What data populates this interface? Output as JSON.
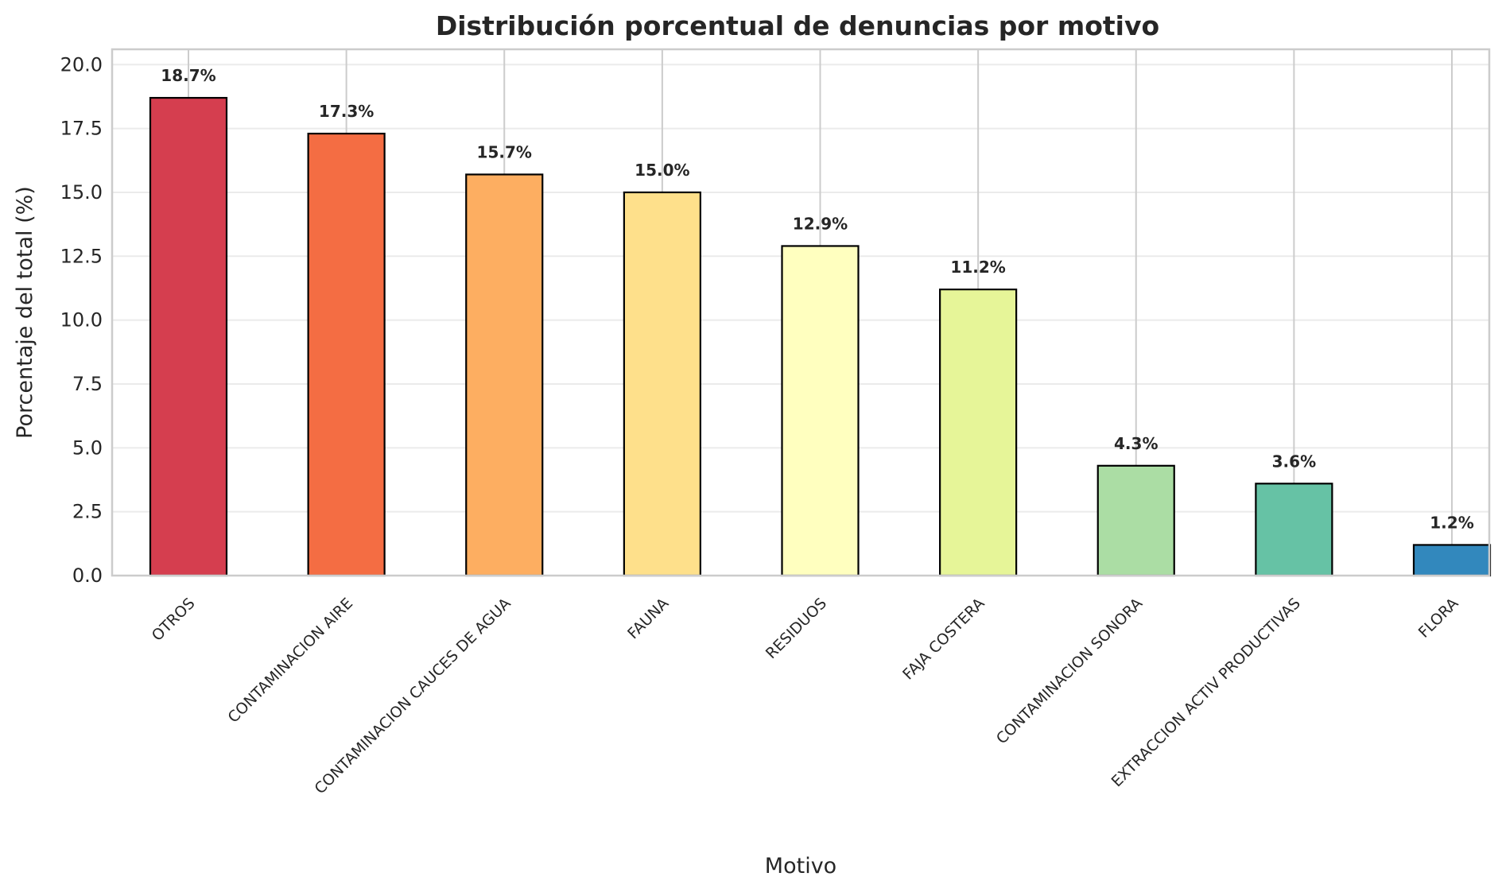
{
  "chart_data": {
    "type": "bar",
    "title": "Distribución porcentual de denuncias por motivo",
    "xlabel": "Motivo",
    "ylabel": "Porcentaje del total (%)",
    "ylim": [
      0,
      20.6
    ],
    "yticks": [
      0.0,
      2.5,
      5.0,
      7.5,
      10.0,
      12.5,
      15.0,
      17.5,
      20.0
    ],
    "grid": true,
    "categories": [
      "OTROS",
      "CONTAMINACION AIRE",
      "CONTAMINACION CAUCES DE AGUA",
      "FAUNA",
      "RESIDUOS",
      "FAJA COSTERA",
      "CONTAMINACION SONORA",
      "EXTRACCION ACTIV PRODUCTIVAS",
      "FLORA"
    ],
    "values": [
      18.7,
      17.3,
      15.7,
      15.0,
      12.9,
      11.2,
      4.3,
      3.6,
      1.2
    ],
    "data_labels": [
      "18.7%",
      "17.3%",
      "15.7%",
      "15.0%",
      "12.9%",
      "11.2%",
      "4.3%",
      "3.6%",
      "1.2%"
    ],
    "colors": [
      "#d53e4f",
      "#f46d43",
      "#fdae61",
      "#fee08b",
      "#ffffbf",
      "#e6f598",
      "#abdda4",
      "#66c2a5",
      "#3288bd"
    ]
  }
}
